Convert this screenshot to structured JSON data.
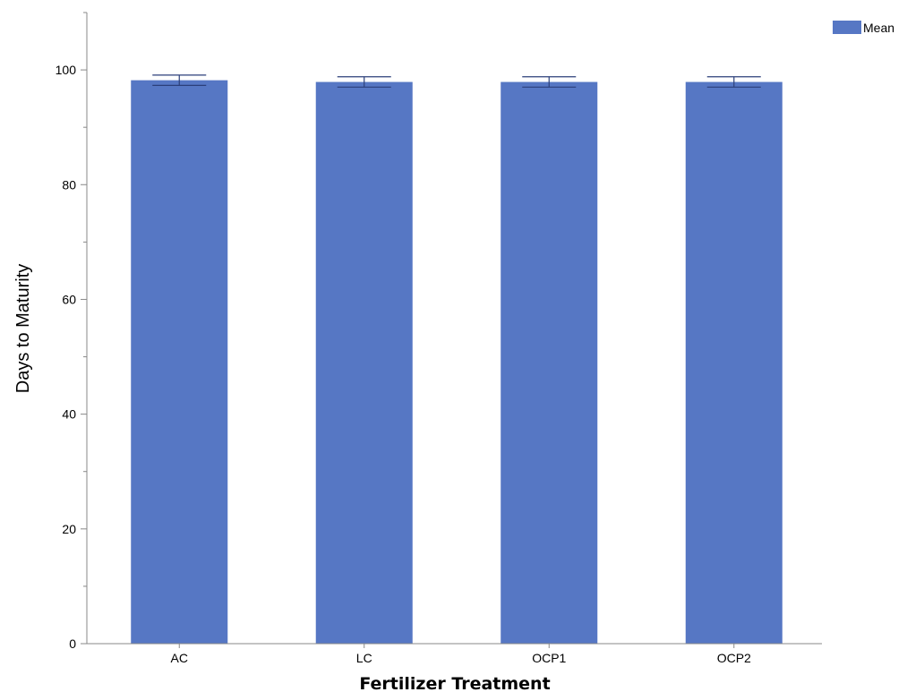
{
  "chart_data": {
    "type": "bar",
    "categories": [
      "AC",
      "LC",
      "OCP1",
      "OCP2"
    ],
    "series": [
      {
        "name": "Mean",
        "values": [
          98.2,
          97.9,
          97.9,
          97.9
        ],
        "error_low": [
          97.3,
          97.0,
          97.0,
          97.0
        ],
        "error_high": [
          99.1,
          98.8,
          98.8,
          98.8
        ]
      }
    ],
    "xlabel": "Fertilizer Treatment",
    "ylabel": "Days to Maturity",
    "ylim": [
      0,
      110
    ],
    "yticks": [
      0,
      20,
      40,
      60,
      80,
      100
    ],
    "bar_color": "#5677C4",
    "error_color": "#2B3F7A",
    "grid": false,
    "legend_position": "top-right"
  }
}
